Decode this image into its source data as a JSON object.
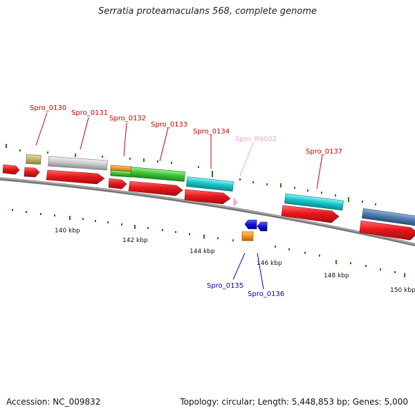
{
  "title": "Serratia proteamaculans 568, complete genome",
  "footer": {
    "accession": "Accession: NC_009832",
    "summary": "Topology: circular; Length: 5,448,853 bp; Genes: 5,000"
  },
  "colors": {
    "forward_cds": "#e8181c",
    "feature_red_label": "#cc0000",
    "feature_blue_label": "#0000cc",
    "rna_label": "#f4a6c8",
    "tick": "#1b7a1b",
    "backbone": "#7a7a7a"
  },
  "scale": {
    "labels": [
      "140 kbp",
      "142 kbp",
      "144 kbp",
      "146 kbp",
      "148 kbp",
      "150 kbp"
    ]
  },
  "labels": {
    "spro_0130": "Spro_0130",
    "spro_0131": "Spro_0131",
    "spro_0132": "Spro_0132",
    "spro_0133": "Spro_0133",
    "spro_0134": "Spro_0134",
    "spro_r0002": "Spro_R0002",
    "spro_0137": "Spro_0137",
    "spro_0135": "Spro_0135",
    "spro_0136": "Spro_0136"
  }
}
